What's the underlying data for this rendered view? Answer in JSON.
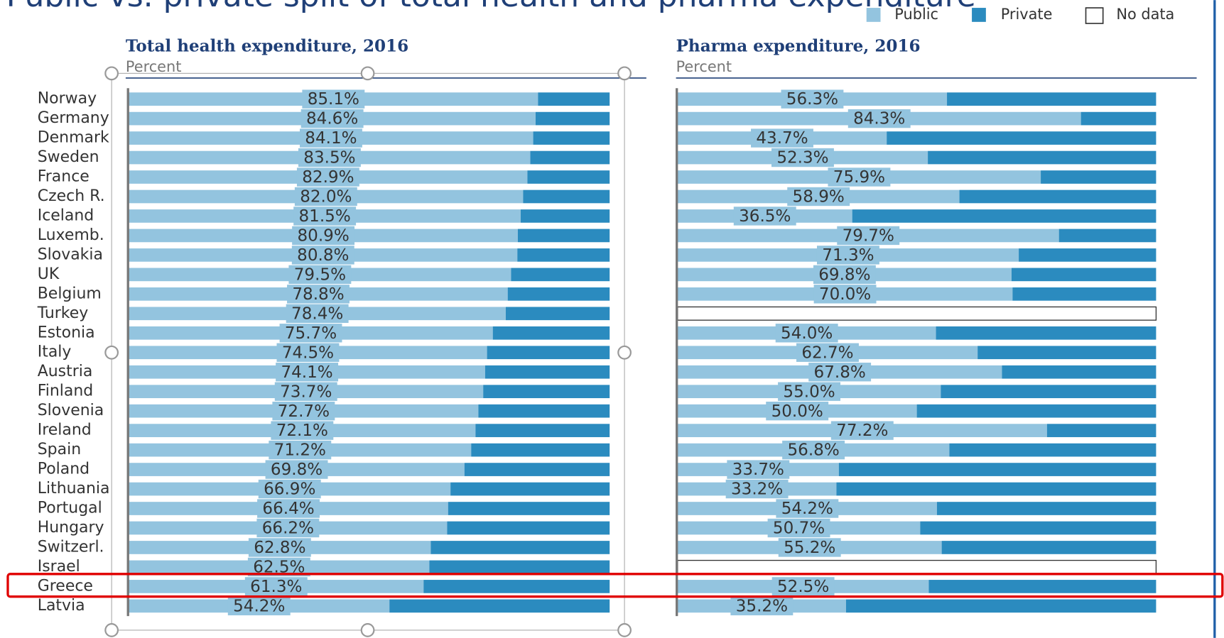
{
  "title": "Public vs. private split of total health and pharma expenditure",
  "no_data_label": "No data",
  "chart_data": [
    {
      "type": "stacked-bar",
      "title": "Total health expenditure, 2016",
      "subtitle": "Percent",
      "xlim": [
        0,
        100
      ],
      "categories": [
        "Norway",
        "Germany",
        "Denmark",
        "Sweden",
        "France",
        "Czech R.",
        "Iceland",
        "Luxemb.",
        "Slovakia",
        "UK",
        "Belgium",
        "Turkey",
        "Estonia",
        "Italy",
        "Austria",
        "Finland",
        "Slovenia",
        "Ireland",
        "Spain",
        "Poland",
        "Lithuania",
        "Portugal",
        "Hungary",
        "Switzerl.",
        "Israel",
        "Greece",
        "Latvia"
      ],
      "series": [
        {
          "name": "Public",
          "color": "#93c4df",
          "values": [
            85.1,
            84.6,
            84.1,
            83.5,
            82.9,
            82.0,
            81.5,
            80.9,
            80.8,
            79.5,
            78.8,
            78.4,
            75.7,
            74.5,
            74.1,
            73.7,
            72.7,
            72.1,
            71.2,
            69.8,
            66.9,
            66.4,
            66.2,
            62.8,
            62.5,
            61.3,
            54.2
          ],
          "value_labels": [
            "85.1%",
            "84.6%",
            "84.1%",
            "83.5%",
            "82.9%",
            "82.0%",
            "81.5%",
            "80.9%",
            "80.8%",
            "79.5%",
            "78.8%",
            "78.4%",
            "75.7%",
            "74.5%",
            "74.1%",
            "73.7%",
            "72.7%",
            "72.1%",
            "71.2%",
            "69.8%",
            "66.9%",
            "66.4%",
            "66.2%",
            "62.8%",
            "62.5%",
            "61.3%",
            "54.2%"
          ]
        },
        {
          "name": "Private",
          "color": "#2b8bbf",
          "values": [
            14.9,
            15.4,
            15.9,
            16.5,
            17.1,
            18.0,
            18.5,
            19.1,
            19.2,
            20.5,
            21.2,
            21.6,
            24.3,
            25.5,
            25.9,
            26.3,
            27.3,
            27.9,
            28.8,
            30.2,
            33.1,
            33.6,
            33.8,
            37.2,
            37.5,
            38.7,
            45.8
          ]
        }
      ]
    },
    {
      "type": "stacked-bar",
      "title": "Pharma expenditure, 2016",
      "subtitle": "Percent",
      "xlim": [
        0,
        100
      ],
      "series": [
        {
          "name": "Public",
          "color": "#93c4df",
          "values": [
            56.3,
            84.3,
            43.7,
            52.3,
            75.9,
            58.9,
            36.5,
            79.7,
            71.3,
            69.8,
            70.0,
            null,
            54.0,
            62.7,
            67.8,
            55.0,
            50.0,
            77.2,
            56.8,
            33.7,
            33.2,
            54.2,
            50.7,
            55.2,
            null,
            52.5,
            35.2
          ],
          "value_labels": [
            "56.3%",
            "84.3%",
            "43.7%",
            "52.3%",
            "75.9%",
            "58.9%",
            "36.5%",
            "79.7%",
            "71.3%",
            "69.8%",
            "70.0%",
            null,
            "54.0%",
            "62.7%",
            "67.8%",
            "55.0%",
            "50.0%",
            "77.2%",
            "56.8%",
            "33.7%",
            "33.2%",
            "54.2%",
            "50.7%",
            "55.2%",
            null,
            "52.5%",
            "35.2%"
          ]
        },
        {
          "name": "Private",
          "color": "#2b8bbf",
          "values": [
            43.7,
            15.7,
            56.3,
            47.7,
            24.1,
            41.1,
            63.5,
            20.3,
            28.7,
            30.2,
            30.0,
            null,
            46.0,
            37.3,
            32.2,
            45.0,
            50.0,
            22.8,
            43.2,
            66.3,
            66.8,
            45.8,
            49.3,
            44.8,
            null,
            47.5,
            64.8
          ]
        }
      ]
    }
  ]
}
